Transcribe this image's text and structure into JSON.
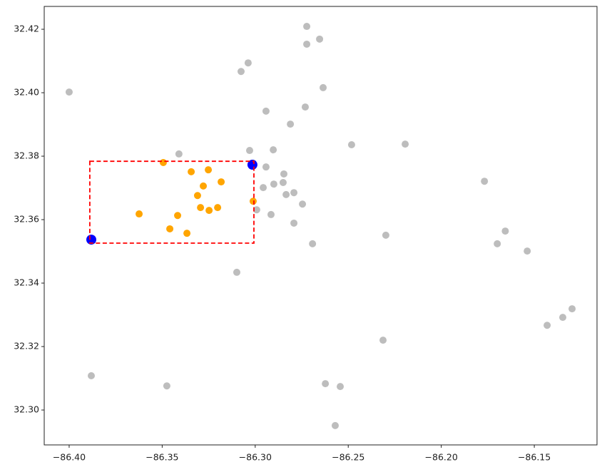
{
  "chart_data": {
    "type": "scatter",
    "xlim": [
      -86.4134,
      -86.1163
    ],
    "ylim": [
      32.289,
      32.4272
    ],
    "xticks": [
      {
        "value": -86.4,
        "label": "−86.40"
      },
      {
        "value": -86.35,
        "label": "−86.35"
      },
      {
        "value": -86.3,
        "label": "−86.30"
      },
      {
        "value": -86.25,
        "label": "−86.25"
      },
      {
        "value": -86.2,
        "label": "−86.20"
      },
      {
        "value": -86.15,
        "label": "−86.15"
      }
    ],
    "yticks": [
      {
        "value": 32.3,
        "label": "32.30"
      },
      {
        "value": 32.32,
        "label": "32.32"
      },
      {
        "value": 32.34,
        "label": "32.34"
      },
      {
        "value": 32.36,
        "label": "32.36"
      },
      {
        "value": 32.38,
        "label": "32.38"
      },
      {
        "value": 32.4,
        "label": "32.40"
      },
      {
        "value": 32.42,
        "label": "32.42"
      }
    ],
    "series": [
      {
        "color": "#bdbdbd",
        "x": [
          -86.2723,
          -86.2654,
          -86.2723,
          -86.3038,
          -86.3076,
          -86.4,
          -86.2635,
          -86.2731,
          -86.2942,
          -86.2811,
          -86.303,
          -86.2903,
          -86.341,
          -86.2482,
          -86.2194,
          -86.2942,
          -86.2846,
          -86.29,
          -86.285,
          -86.2957,
          -86.2834,
          -86.2792,
          -86.2746,
          -86.2992,
          -86.2915,
          -86.2792,
          -86.2692,
          -86.2298,
          -86.1656,
          -86.1699,
          -86.1538,
          -86.1768,
          -86.3099,
          -86.2313,
          -86.1431,
          -86.1347,
          -86.1297,
          -86.3881,
          -86.3475,
          -86.2623,
          -86.2543,
          -86.257
        ],
        "y": [
          32.4209,
          32.4169,
          32.4153,
          32.4094,
          32.4067,
          32.4002,
          32.4016,
          32.3955,
          32.3942,
          32.3901,
          32.3818,
          32.382,
          32.3807,
          32.3836,
          32.3838,
          32.3766,
          32.3744,
          32.3712,
          32.3717,
          32.3701,
          32.3679,
          32.3685,
          32.3649,
          32.3631,
          32.3616,
          32.3589,
          32.3524,
          32.3551,
          32.3564,
          32.3524,
          32.3501,
          32.3721,
          32.3434,
          32.322,
          32.3267,
          32.3292,
          32.3319,
          32.3108,
          32.3076,
          32.3083,
          32.3074,
          32.2951
        ]
      },
      {
        "color": "orange",
        "x": [
          -86.3494,
          -86.3344,
          -86.3252,
          -86.3183,
          -86.3279,
          -86.331,
          -86.3624,
          -86.3417,
          -86.3294,
          -86.3248,
          -86.3202,
          -86.3459,
          -86.3367,
          -86.3011
        ],
        "y": [
          32.378,
          32.3751,
          32.3757,
          32.3719,
          32.3706,
          32.3676,
          32.3618,
          32.3613,
          32.3638,
          32.3629,
          32.3638,
          32.3571,
          32.3557,
          32.3658
        ]
      },
      {
        "color": "blue",
        "x": [
          -86.3881,
          -86.3015
        ],
        "y": [
          32.3537,
          32.3773
        ]
      }
    ],
    "rectangle": {
      "x": [
        -86.3889,
        -86.3007
      ],
      "y": [
        32.3526,
        32.3784
      ],
      "color": "red",
      "linestyle": "dashed"
    }
  }
}
